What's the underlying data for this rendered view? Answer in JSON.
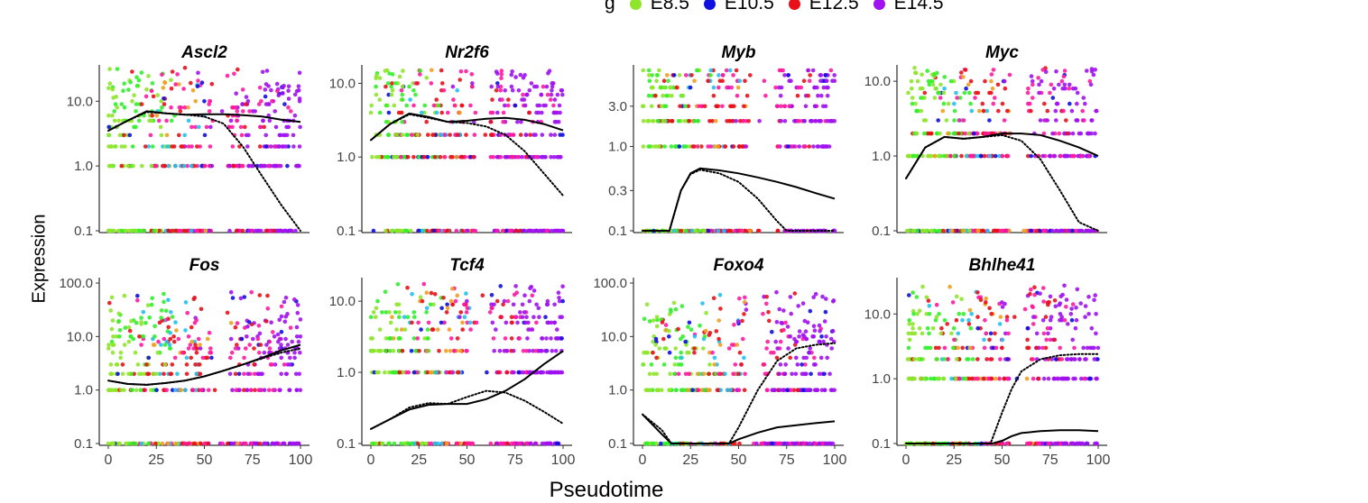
{
  "chart_data": {
    "type": "scatter",
    "xlabel": "Pseudotime",
    "ylabel": "Expression",
    "xlim": [
      0,
      100
    ],
    "xticks": [
      0,
      25,
      50,
      75,
      100
    ],
    "legend": {
      "title": "g",
      "placement": "top-center",
      "entries": [
        {
          "label": "E8.5",
          "color": "#8ee52b"
        },
        {
          "label": "E10.5",
          "color": "#1010e0"
        },
        {
          "label": "E12.5",
          "color": "#e8111a"
        },
        {
          "label": "E14.5",
          "color": "#a012f0"
        }
      ]
    },
    "panels": [
      {
        "gene": "Ascl2",
        "ylim": [
          0.1,
          30
        ],
        "yticks": [
          0.1,
          1.0,
          10.0
        ],
        "ytick_labels": [
          "0.1",
          "1.0",
          "10.0"
        ],
        "max_level": 30,
        "empty_ranges": [
          [
            54,
            62
          ]
        ],
        "solid": [
          [
            0,
            3.5
          ],
          [
            10,
            5
          ],
          [
            20,
            7
          ],
          [
            30,
            6.5
          ],
          [
            40,
            6.2
          ],
          [
            50,
            6.3
          ],
          [
            60,
            6.3
          ],
          [
            70,
            6.1
          ],
          [
            80,
            5.8
          ],
          [
            90,
            5.2
          ],
          [
            100,
            4.8
          ]
        ],
        "dotted": [
          [
            0,
            3.5
          ],
          [
            10,
            5
          ],
          [
            20,
            6.8
          ],
          [
            30,
            6.5
          ],
          [
            40,
            6.2
          ],
          [
            50,
            5.8
          ],
          [
            60,
            4.5
          ],
          [
            70,
            2.0
          ],
          [
            80,
            0.7
          ],
          [
            90,
            0.25
          ],
          [
            100,
            0.1
          ]
        ]
      },
      {
        "gene": "Nr2f6",
        "ylim": [
          0.1,
          15
        ],
        "yticks": [
          0.1,
          1.0,
          10.0
        ],
        "ytick_labels": [
          "0.1",
          "1.0",
          "10.0"
        ],
        "max_level": 15,
        "empty_ranges": [
          [
            54,
            62
          ]
        ],
        "solid": [
          [
            0,
            1.7
          ],
          [
            10,
            2.8
          ],
          [
            20,
            3.9
          ],
          [
            30,
            3.5
          ],
          [
            40,
            3.0
          ],
          [
            50,
            3.1
          ],
          [
            60,
            3.3
          ],
          [
            70,
            3.4
          ],
          [
            80,
            3.2
          ],
          [
            90,
            2.8
          ],
          [
            100,
            2.3
          ]
        ],
        "dotted": [
          [
            0,
            1.7
          ],
          [
            10,
            2.8
          ],
          [
            20,
            3.8
          ],
          [
            30,
            3.4
          ],
          [
            40,
            3.0
          ],
          [
            50,
            2.9
          ],
          [
            60,
            2.6
          ],
          [
            70,
            2.0
          ],
          [
            80,
            1.2
          ],
          [
            90,
            0.6
          ],
          [
            100,
            0.3
          ]
        ]
      },
      {
        "gene": "Myb",
        "ylim": [
          0.1,
          8
        ],
        "yticks": [
          0.1,
          0.3,
          1.0,
          3.0
        ],
        "ytick_labels": [
          "0.1",
          "0.3",
          "1.0",
          "3.0"
        ],
        "max_level": 8,
        "empty_ranges": [
          [
            56,
            70
          ]
        ],
        "solid": [
          [
            0,
            0.1
          ],
          [
            10,
            0.1
          ],
          [
            14,
            0.1
          ],
          [
            20,
            0.3
          ],
          [
            25,
            0.48
          ],
          [
            30,
            0.55
          ],
          [
            40,
            0.52
          ],
          [
            50,
            0.48
          ],
          [
            60,
            0.43
          ],
          [
            70,
            0.38
          ],
          [
            80,
            0.33
          ],
          [
            90,
            0.28
          ],
          [
            100,
            0.24
          ]
        ],
        "dotted": [
          [
            0,
            0.1
          ],
          [
            10,
            0.1
          ],
          [
            14,
            0.1
          ],
          [
            20,
            0.3
          ],
          [
            25,
            0.47
          ],
          [
            30,
            0.53
          ],
          [
            40,
            0.48
          ],
          [
            50,
            0.38
          ],
          [
            60,
            0.24
          ],
          [
            70,
            0.13
          ],
          [
            75,
            0.1
          ],
          [
            100,
            0.1
          ]
        ]
      },
      {
        "gene": "Myc",
        "ylim": [
          0.1,
          14
        ],
        "yticks": [
          0.1,
          1.0,
          10.0
        ],
        "ytick_labels": [
          "0.1",
          "1.0",
          "10.0"
        ],
        "max_level": 14,
        "empty_ranges": [
          [
            54,
            62
          ]
        ],
        "solid": [
          [
            0,
            0.5
          ],
          [
            10,
            1.3
          ],
          [
            20,
            1.8
          ],
          [
            30,
            1.7
          ],
          [
            40,
            1.8
          ],
          [
            50,
            2.0
          ],
          [
            60,
            2.0
          ],
          [
            70,
            1.9
          ],
          [
            80,
            1.6
          ],
          [
            90,
            1.3
          ],
          [
            100,
            1.0
          ]
        ],
        "dotted": [
          [
            0,
            0.5
          ],
          [
            10,
            1.3
          ],
          [
            20,
            1.8
          ],
          [
            30,
            1.7
          ],
          [
            40,
            1.8
          ],
          [
            50,
            1.9
          ],
          [
            60,
            1.6
          ],
          [
            70,
            0.9
          ],
          [
            80,
            0.35
          ],
          [
            90,
            0.13
          ],
          [
            100,
            0.1
          ]
        ]
      },
      {
        "gene": "Fos",
        "ylim": [
          0.1,
          100
        ],
        "yticks": [
          0.1,
          1.0,
          10.0,
          100.0
        ],
        "ytick_labels": [
          "0.1",
          "1.0",
          "10.0",
          "100.0"
        ],
        "max_level": 60,
        "empty_ranges": [
          [
            54,
            62
          ]
        ],
        "solid": [
          [
            0,
            1.5
          ],
          [
            10,
            1.3
          ],
          [
            20,
            1.25
          ],
          [
            30,
            1.35
          ],
          [
            40,
            1.5
          ],
          [
            50,
            1.8
          ],
          [
            60,
            2.3
          ],
          [
            70,
            3.0
          ],
          [
            80,
            4.0
          ],
          [
            90,
            5.5
          ],
          [
            100,
            7.0
          ]
        ],
        "dotted": [
          [
            0,
            1.5
          ],
          [
            10,
            1.3
          ],
          [
            20,
            1.25
          ],
          [
            30,
            1.35
          ],
          [
            40,
            1.5
          ],
          [
            50,
            1.8
          ],
          [
            60,
            2.3
          ],
          [
            70,
            3.0
          ],
          [
            80,
            3.9
          ],
          [
            90,
            5.0
          ],
          [
            100,
            6.0
          ]
        ]
      },
      {
        "gene": "Tcf4",
        "ylim": [
          0.1,
          18
        ],
        "yticks": [
          0.1,
          1.0,
          10.0
        ],
        "ytick_labels": [
          "0.1",
          "1.0",
          "10.0"
        ],
        "max_level": 16,
        "empty_ranges": [
          [
            54,
            62
          ]
        ],
        "solid": [
          [
            0,
            0.16
          ],
          [
            10,
            0.22
          ],
          [
            20,
            0.3
          ],
          [
            30,
            0.35
          ],
          [
            40,
            0.36
          ],
          [
            50,
            0.36
          ],
          [
            60,
            0.42
          ],
          [
            70,
            0.55
          ],
          [
            80,
            0.8
          ],
          [
            90,
            1.3
          ],
          [
            100,
            2.0
          ]
        ],
        "dotted": [
          [
            0,
            0.16
          ],
          [
            10,
            0.22
          ],
          [
            20,
            0.32
          ],
          [
            30,
            0.37
          ],
          [
            40,
            0.36
          ],
          [
            50,
            0.45
          ],
          [
            60,
            0.55
          ],
          [
            70,
            0.52
          ],
          [
            80,
            0.4
          ],
          [
            90,
            0.28
          ],
          [
            100,
            0.19
          ]
        ]
      },
      {
        "gene": "Foxo4",
        "ylim": [
          0.1,
          100
        ],
        "yticks": [
          0.1,
          1.0,
          10.0,
          100.0
        ],
        "ytick_labels": [
          "0.1",
          "1.0",
          "10.0",
          "100.0"
        ],
        "max_level": 60,
        "empty_ranges": [
          [
            54,
            62
          ]
        ],
        "solid": [
          [
            0,
            0.35
          ],
          [
            10,
            0.15
          ],
          [
            15,
            0.1
          ],
          [
            25,
            0.1
          ],
          [
            45,
            0.1
          ],
          [
            50,
            0.12
          ],
          [
            60,
            0.16
          ],
          [
            70,
            0.2
          ],
          [
            80,
            0.22
          ],
          [
            90,
            0.24
          ],
          [
            100,
            0.26
          ]
        ],
        "dotted": [
          [
            0,
            0.35
          ],
          [
            10,
            0.18
          ],
          [
            15,
            0.1
          ],
          [
            45,
            0.1
          ],
          [
            50,
            0.2
          ],
          [
            60,
            1.0
          ],
          [
            70,
            3.5
          ],
          [
            80,
            6.0
          ],
          [
            90,
            7.0
          ],
          [
            100,
            7.5
          ]
        ]
      },
      {
        "gene": "Bhlhe41",
        "ylim": [
          0.1,
          30
        ],
        "yticks": [
          0.1,
          1.0,
          10.0
        ],
        "ytick_labels": [
          "0.1",
          "1.0",
          "10.0"
        ],
        "max_level": 28,
        "empty_ranges": [
          [
            54,
            62
          ]
        ],
        "solid": [
          [
            0,
            0.1
          ],
          [
            20,
            0.1
          ],
          [
            45,
            0.1
          ],
          [
            50,
            0.11
          ],
          [
            55,
            0.13
          ],
          [
            60,
            0.145
          ],
          [
            70,
            0.155
          ],
          [
            80,
            0.16
          ],
          [
            90,
            0.16
          ],
          [
            100,
            0.155
          ]
        ],
        "dotted": [
          [
            0,
            0.1
          ],
          [
            20,
            0.1
          ],
          [
            44,
            0.1
          ],
          [
            50,
            0.3
          ],
          [
            55,
            0.7
          ],
          [
            60,
            1.3
          ],
          [
            70,
            2.0
          ],
          [
            80,
            2.3
          ],
          [
            90,
            2.4
          ],
          [
            100,
            2.4
          ]
        ]
      }
    ]
  }
}
